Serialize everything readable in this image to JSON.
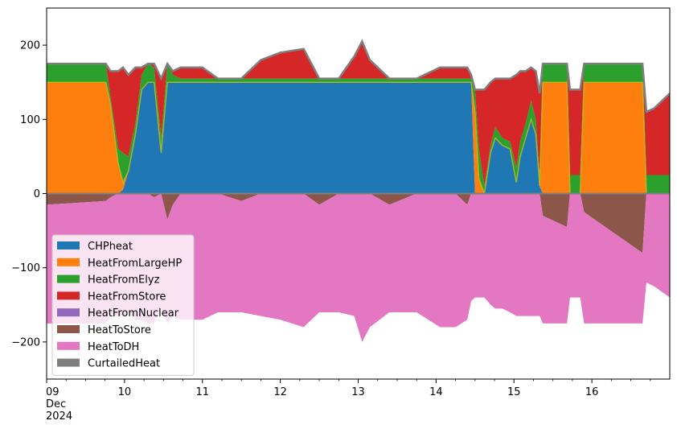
{
  "chart_data": {
    "type": "area",
    "title": "",
    "xlabel": "",
    "ylabel": "",
    "x_unit": "day",
    "xlim": [
      9,
      17
    ],
    "ylim": [
      -250,
      250
    ],
    "grid": false,
    "legend_position": "lower-left",
    "x_tick_labels": [
      {
        "value": 9,
        "lines": [
          "09",
          "Dec",
          "2024"
        ]
      },
      {
        "value": 10,
        "lines": [
          "10"
        ]
      },
      {
        "value": 11,
        "lines": [
          "11"
        ]
      },
      {
        "value": 12,
        "lines": [
          "12"
        ]
      },
      {
        "value": 13,
        "lines": [
          "13"
        ]
      },
      {
        "value": 14,
        "lines": [
          "14"
        ]
      },
      {
        "value": 15,
        "lines": [
          "15"
        ]
      },
      {
        "value": 16,
        "lines": [
          "16"
        ]
      }
    ],
    "y_ticks": [
      -200,
      -100,
      0,
      100,
      200
    ],
    "y_tick_labels": [
      "−200",
      "−100",
      "0",
      "100",
      "200"
    ],
    "x": [
      9.0,
      9.76,
      9.82,
      9.92,
      9.98,
      10.05,
      10.14,
      10.22,
      10.3,
      10.38,
      10.47,
      10.55,
      10.62,
      10.72,
      11.0,
      11.2,
      11.5,
      11.75,
      12.0,
      12.3,
      12.5,
      12.75,
      12.95,
      13.05,
      13.15,
      13.4,
      13.75,
      14.05,
      14.25,
      14.4,
      14.45,
      14.5,
      14.55,
      14.62,
      14.7,
      14.76,
      14.85,
      14.95,
      15.03,
      15.08,
      15.15,
      15.22,
      15.28,
      15.33,
      15.37,
      15.68,
      15.72,
      15.85,
      15.9,
      16.65,
      16.7,
      16.8,
      17.0
    ],
    "series": [
      {
        "name": "CHPheat",
        "color": "#1f77b4",
        "values": [
          0,
          0,
          0,
          0,
          5,
          30,
          80,
          140,
          150,
          150,
          55,
          150,
          150,
          150,
          150,
          150,
          150,
          150,
          150,
          150,
          150,
          150,
          150,
          150,
          150,
          150,
          150,
          150,
          150,
          150,
          150,
          0,
          0,
          0,
          55,
          75,
          65,
          60,
          15,
          50,
          75,
          100,
          80,
          10,
          0,
          0,
          0,
          0,
          0,
          0,
          0,
          0,
          0
        ]
      },
      {
        "name": "HeatFromLargeHP",
        "color": "#ff7f0e",
        "values": [
          150,
          150,
          120,
          40,
          10,
          0,
          0,
          0,
          0,
          0,
          0,
          0,
          0,
          0,
          0,
          0,
          0,
          0,
          0,
          0,
          0,
          0,
          0,
          0,
          0,
          0,
          0,
          0,
          0,
          0,
          0,
          110,
          20,
          0,
          0,
          0,
          0,
          0,
          0,
          0,
          0,
          0,
          0,
          0,
          150,
          150,
          0,
          0,
          150,
          150,
          0,
          0,
          0
        ]
      },
      {
        "name": "HeatFromElyz",
        "color": "#2ca02c",
        "values": [
          25,
          25,
          10,
          20,
          40,
          20,
          15,
          20,
          25,
          20,
          20,
          25,
          10,
          5,
          5,
          5,
          5,
          5,
          5,
          5,
          5,
          5,
          5,
          5,
          5,
          5,
          5,
          5,
          5,
          5,
          5,
          30,
          40,
          10,
          10,
          15,
          10,
          10,
          20,
          20,
          20,
          25,
          20,
          15,
          25,
          25,
          25,
          25,
          25,
          25,
          25,
          25,
          25
        ]
      },
      {
        "name": "HeatFromStore",
        "color": "#d62728",
        "values": [
          0,
          0,
          35,
          105,
          115,
          110,
          75,
          10,
          0,
          5,
          80,
          0,
          5,
          15,
          15,
          0,
          0,
          25,
          35,
          40,
          0,
          0,
          30,
          50,
          25,
          0,
          0,
          15,
          15,
          15,
          5,
          0,
          80,
          130,
          85,
          65,
          80,
          85,
          125,
          95,
          70,
          45,
          65,
          110,
          0,
          0,
          115,
          115,
          0,
          0,
          85,
          90,
          110
        ]
      },
      {
        "name": "HeatFromNuclear",
        "color": "#9467bd",
        "values": [
          0,
          0,
          0,
          0,
          0,
          0,
          0,
          0,
          0,
          0,
          0,
          0,
          0,
          0,
          0,
          0,
          0,
          0,
          0,
          0,
          0,
          0,
          0,
          0,
          0,
          0,
          0,
          0,
          0,
          0,
          0,
          0,
          0,
          0,
          0,
          0,
          0,
          0,
          0,
          0,
          0,
          0,
          0,
          0,
          0,
          0,
          0,
          0,
          0,
          0,
          0,
          0,
          0
        ]
      },
      {
        "name": "HeatToStore",
        "color": "#8c564b",
        "values": [
          -15,
          -10,
          -5,
          0,
          0,
          0,
          0,
          0,
          0,
          -5,
          0,
          -35,
          -15,
          0,
          0,
          0,
          -10,
          0,
          0,
          0,
          -15,
          0,
          0,
          0,
          0,
          -15,
          0,
          0,
          0,
          -15,
          0,
          0,
          0,
          0,
          0,
          0,
          0,
          0,
          0,
          0,
          0,
          0,
          0,
          0,
          -30,
          -45,
          0,
          0,
          -25,
          -80,
          0,
          0,
          0
        ]
      },
      {
        "name": "HeatToDH",
        "color": "#e377c2",
        "values": [
          -160,
          -165,
          -160,
          -165,
          -165,
          -160,
          -170,
          -170,
          -175,
          -170,
          -155,
          -140,
          -150,
          -170,
          -170,
          -160,
          -150,
          -165,
          -170,
          -180,
          -145,
          -160,
          -165,
          -200,
          -180,
          -145,
          -160,
          -180,
          -180,
          -155,
          -145,
          -140,
          -140,
          -140,
          -150,
          -155,
          -155,
          -160,
          -165,
          -165,
          -165,
          -165,
          -165,
          -165,
          -145,
          -130,
          -140,
          -140,
          -150,
          -95,
          -120,
          -125,
          -140
        ]
      },
      {
        "name": "CurtailedHeat",
        "color": "#7f7f7f",
        "values": [
          0,
          0,
          0,
          0,
          0,
          0,
          0,
          0,
          0,
          0,
          0,
          0,
          0,
          0,
          0,
          0,
          0,
          0,
          0,
          0,
          0,
          0,
          0,
          0,
          0,
          0,
          0,
          0,
          0,
          0,
          0,
          0,
          0,
          0,
          0,
          0,
          0,
          0,
          0,
          0,
          0,
          0,
          0,
          0,
          0,
          0,
          0,
          0,
          0,
          0,
          0,
          0,
          0
        ]
      }
    ]
  }
}
